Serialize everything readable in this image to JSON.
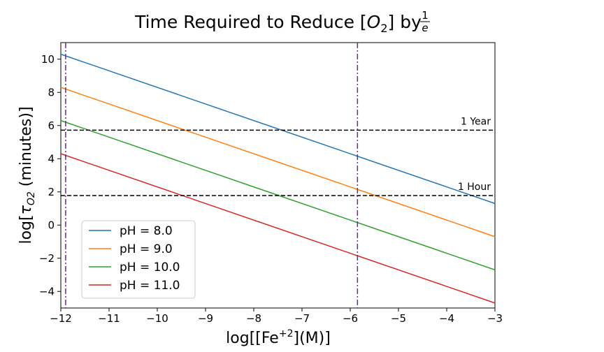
{
  "chart_data": {
    "type": "line",
    "title": {
      "main": "Time Required to Reduce [",
      "o2": "O",
      "o2_sub": "2",
      "after": "] by ",
      "frac_num": "1",
      "frac_den": "e"
    },
    "xlabel": {
      "pre": "log[[Fe",
      "sup": "+2",
      "post": "](M)]"
    },
    "ylabel": {
      "pre": "log[",
      "tau": "τ",
      "sub": "O2",
      "post": " (minutes)]"
    },
    "xlim": [
      -12,
      -3
    ],
    "ylim": [
      -5,
      11
    ],
    "x_ticks": [
      -12,
      -11,
      -10,
      -9,
      -8,
      -7,
      -6,
      -5,
      -4,
      -3
    ],
    "x_tick_labels": [
      "−12",
      "−11",
      "−10",
      "−9",
      "−8",
      "−7",
      "−6",
      "−5",
      "−4",
      "−3"
    ],
    "y_ticks": [
      -4,
      -2,
      0,
      2,
      4,
      6,
      8,
      10
    ],
    "y_tick_labels": [
      "−4",
      "−2",
      "0",
      "2",
      "4",
      "6",
      "8",
      "10"
    ],
    "x": [
      -12,
      -3
    ],
    "series": [
      {
        "name": "pH = 8.0",
        "color": "#1f77b4",
        "values": [
          10.3,
          1.3
        ]
      },
      {
        "name": "pH = 9.0",
        "color": "#ff7f0e",
        "values": [
          8.3,
          -0.7
        ]
      },
      {
        "name": "pH = 10.0",
        "color": "#2ca02c",
        "values": [
          6.3,
          -2.7
        ]
      },
      {
        "name": "pH = 11.0",
        "color": "#d62728",
        "values": [
          4.3,
          -4.7
        ]
      }
    ],
    "hlines": [
      {
        "y": 5.72,
        "label": "1 Year"
      },
      {
        "y": 1.78,
        "label": "1 Hour"
      }
    ],
    "vlines": [
      {
        "x": -11.9,
        "color": "#6a2c91"
      },
      {
        "x": -5.85,
        "color": "#6a2c91"
      }
    ],
    "legend_position": "lower-left",
    "grid": false
  }
}
